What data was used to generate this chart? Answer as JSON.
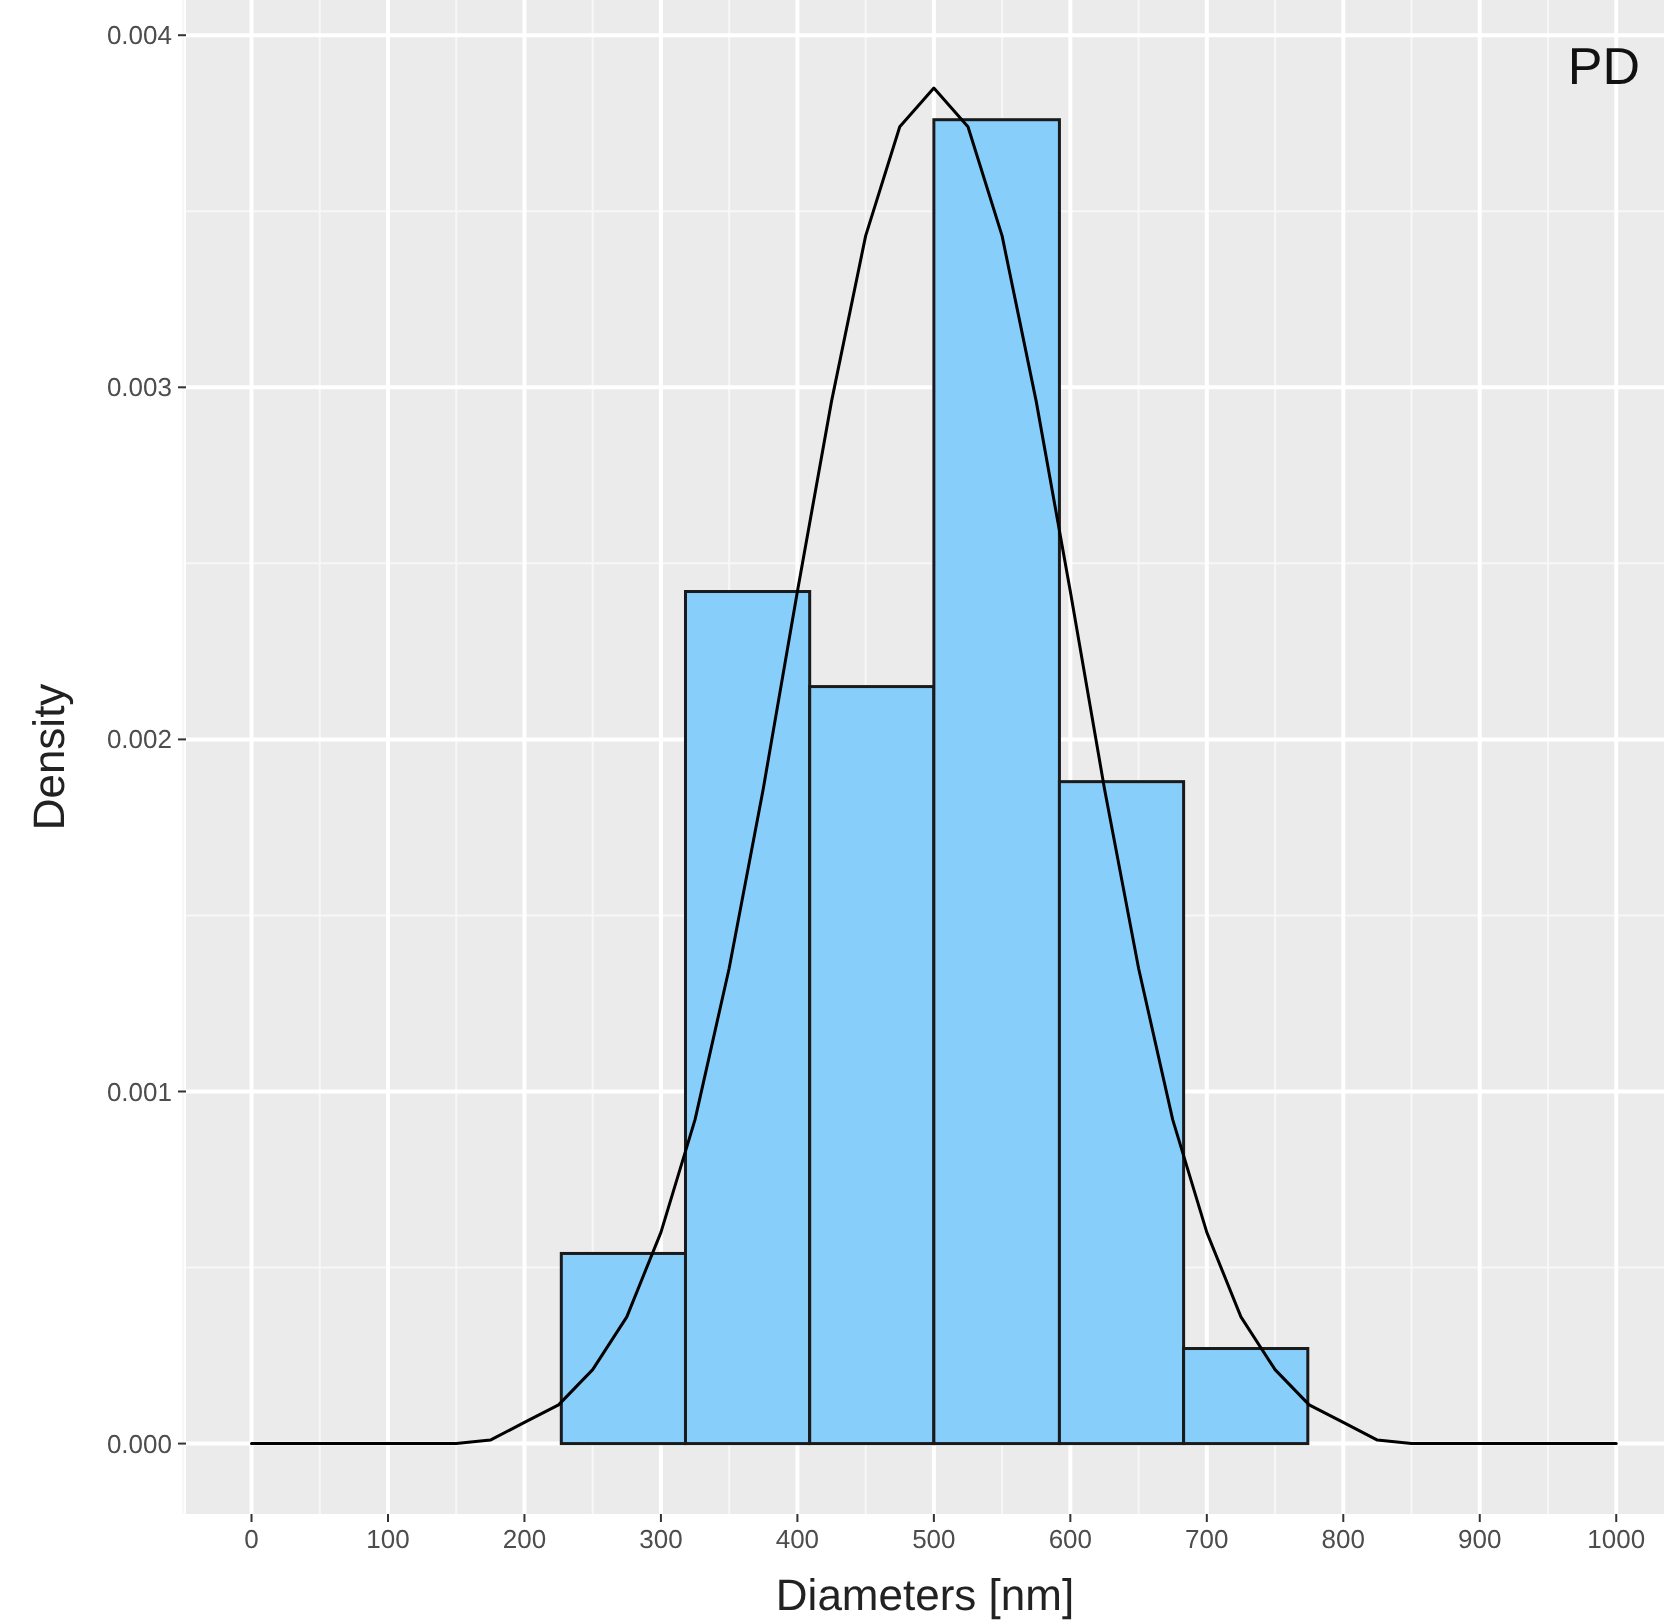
{
  "chart_data": {
    "type": "histogram",
    "xlabel": "Diameters [nm]",
    "ylabel": "Density",
    "annotations": [
      "PD"
    ],
    "bins": [
      227,
      318,
      409,
      500,
      592,
      683,
      774
    ],
    "values": [
      0.00054,
      0.00242,
      0.00215,
      0.00376,
      0.00188,
      0.00027
    ],
    "color": "#87cefa",
    "series": [
      {
        "type": "line",
        "color": "#000000",
        "x": [
          0,
          100,
          150,
          175,
          200,
          225,
          250,
          275,
          300,
          325,
          350,
          375,
          400,
          425,
          450,
          475,
          500,
          525,
          550,
          575,
          600,
          625,
          650,
          675,
          700,
          725,
          750,
          775,
          800,
          825,
          850,
          900,
          1000
        ],
        "values": [
          0,
          0,
          0,
          1e-05,
          6e-05,
          0.00011,
          0.00021,
          0.00036,
          0.0006,
          0.00092,
          0.00135,
          0.00186,
          0.00242,
          0.00296,
          0.00343,
          0.00374,
          0.00385,
          0.00374,
          0.00343,
          0.00296,
          0.00242,
          0.00186,
          0.00135,
          0.00092,
          0.0006,
          0.00036,
          0.00021,
          0.00011,
          6e-05,
          1e-05,
          0,
          0,
          0
        ]
      }
    ],
    "xlim": [
      -48,
      1035
    ],
    "ylim": [
      -0.0002,
      0.0041
    ],
    "xticks": [
      0,
      100,
      200,
      300,
      400,
      500,
      600,
      700,
      800,
      900,
      1000
    ],
    "yticks": [
      {
        "value": 0,
        "label": "0.000"
      },
      {
        "value": 0.001,
        "label": "0.001"
      },
      {
        "value": 0.002,
        "label": "0.002"
      },
      {
        "value": 0.003,
        "label": "0.003"
      },
      {
        "value": 0.004,
        "label": "0.004"
      }
    ],
    "grid": true
  }
}
